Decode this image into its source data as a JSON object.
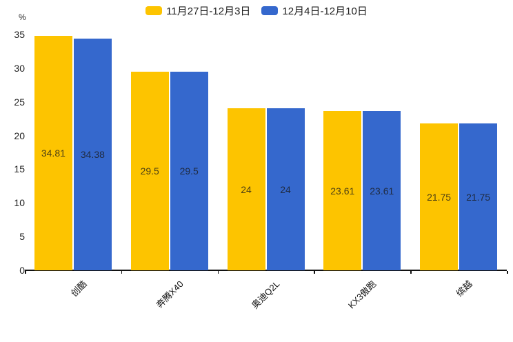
{
  "chart_data": {
    "type": "bar",
    "title": "",
    "xlabel": "",
    "ylabel": "%",
    "categories": [
      "创酷",
      "奔腾X40",
      "奥迪Q2L",
      "KX3傲跑",
      "缤越"
    ],
    "series": [
      {
        "name": "11月27日-12月3日",
        "color": "#FDC400",
        "values": [
          34.81,
          29.5,
          24,
          23.61,
          21.75
        ],
        "labels": [
          "34.81",
          "29.5",
          "24",
          "23.61",
          "21.75"
        ]
      },
      {
        "name": "12月4日-12月10日",
        "color": "#3568CD",
        "values": [
          34.38,
          29.5,
          24,
          23.61,
          21.75
        ],
        "labels": [
          "34.38",
          "29.5",
          "24",
          "23.61",
          "21.75"
        ]
      }
    ],
    "ylim": [
      0,
      35
    ],
    "yticks": [
      0,
      5,
      10,
      15,
      20,
      25,
      30,
      35
    ],
    "grid": false,
    "legend_position": "top",
    "value_labels": "inside-center",
    "axis_color": "#111111",
    "background": "#ffffff"
  }
}
